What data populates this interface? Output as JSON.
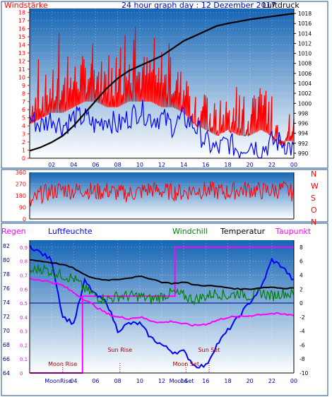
{
  "header": {
    "title": "24 hour graph day : 12 Dezember 2017",
    "left_label": "Windstärke",
    "right_label": "Luftdruck"
  },
  "colors": {
    "wind": "#ff0000",
    "gust_base": "#0000ff",
    "pressure": "#000000",
    "humidity": "#0000ff",
    "windchill": "#008000",
    "temperature": "#000000",
    "dewpoint": "#ff00ff",
    "rain": "#ff00ff",
    "gradient_top": "#1e78c8",
    "gradient_bottom": "#ffffff"
  },
  "chart_data": [
    {
      "type": "bar",
      "name_id": "wind-pressure",
      "title": "24 hour graph day : 12 Dezember 2017",
      "ylabel": "Windstärke",
      "y2label": "Luftdruck",
      "x_ticks": [
        "02",
        "04",
        "06",
        "08",
        "10",
        "12",
        "14",
        "16",
        "18",
        "20",
        "22",
        "00"
      ],
      "y_ticks": [
        0,
        1,
        2,
        3,
        4,
        5,
        6,
        7,
        8,
        9,
        10,
        11,
        12,
        13,
        14,
        15,
        16,
        17,
        18
      ],
      "y2_ticks": [
        990,
        992,
        994,
        996,
        998,
        1000,
        1002,
        1004,
        1006,
        1008,
        1010,
        1012,
        1014,
        1016,
        1018
      ],
      "ylim": [
        0,
        18.5
      ],
      "y2lim": [
        989,
        1019
      ],
      "pressure": {
        "x": [
          0,
          1,
          2,
          3,
          4,
          5,
          6,
          7,
          8,
          9,
          10,
          11,
          12,
          13,
          14,
          15,
          16,
          17,
          18,
          19,
          20,
          21,
          22,
          23,
          24
        ],
        "values": [
          990.5,
          991.2,
          992.2,
          993.5,
          995.5,
          998,
          1000.5,
          1003,
          1005,
          1006.5,
          1007.5,
          1008.5,
          1009.5,
          1011,
          1012.5,
          1013.5,
          1014.5,
          1015.5,
          1016,
          1016.4,
          1016.8,
          1017.1,
          1017.4,
          1017.7,
          1018
        ]
      },
      "wind": {
        "x": [
          0,
          1,
          2,
          3,
          4,
          5,
          6,
          7,
          8,
          9,
          10,
          11,
          12,
          13,
          14,
          15,
          16,
          17,
          18,
          19,
          20,
          21,
          22,
          23,
          24
        ],
        "values": [
          6,
          7,
          8,
          8,
          9,
          10,
          10,
          9,
          9,
          10,
          10,
          10,
          9,
          9,
          8,
          6,
          5,
          4,
          5,
          4,
          4,
          5,
          4,
          3,
          3
        ],
        "gust_max": [
          12,
          14,
          15,
          16,
          15,
          17,
          16,
          16,
          14,
          17,
          18,
          15,
          15,
          14,
          12,
          11,
          9,
          8,
          9,
          9,
          8,
          9,
          9,
          7,
          6
        ]
      },
      "gust_base": {
        "x": [
          0,
          1,
          2,
          3,
          4,
          5,
          6,
          7,
          8,
          9,
          10,
          11,
          12,
          13,
          14,
          15,
          16,
          17,
          18,
          19,
          20,
          21,
          22,
          23,
          24
        ],
        "values": [
          5,
          4,
          5,
          4,
          5,
          5,
          4,
          5,
          4,
          5,
          6,
          5,
          5,
          4,
          5,
          4,
          2,
          1,
          2,
          1,
          2,
          1,
          2,
          2,
          1
        ]
      }
    },
    {
      "type": "line",
      "name_id": "wind-direction",
      "ylabel_letters": [
        "N",
        "W",
        "S",
        "O",
        "N"
      ],
      "y_ticks": [
        0,
        90,
        180,
        270,
        360
      ],
      "ylim": [
        0,
        360
      ],
      "series": [
        {
          "name": "",
          "x": [
            0,
            1,
            2,
            3,
            4,
            5,
            6,
            7,
            8,
            9,
            10,
            11,
            12,
            13,
            14,
            15,
            16,
            17,
            18,
            19,
            20,
            21,
            22,
            23,
            24
          ],
          "values": [
            110,
            190,
            210,
            230,
            215,
            230,
            205,
            220,
            200,
            195,
            210,
            230,
            215,
            210,
            205,
            225,
            220,
            215,
            205,
            225,
            230,
            215,
            220,
            230,
            200
          ]
        }
      ]
    },
    {
      "type": "line",
      "name_id": "temperature-humidity",
      "legend": [
        "Regen",
        "Luftfeuchte",
        "Windchill",
        "Temperatur",
        "Taupunkt"
      ],
      "x_ticks": [
        "04",
        "06",
        "08",
        "10",
        "12",
        "14",
        "16",
        "18",
        "20",
        "22",
        "00"
      ],
      "left_ticks_humidity": [
        64,
        66,
        68,
        70,
        72,
        74,
        76,
        78,
        80,
        82
      ],
      "left_ticks_rain": [
        "0",
        "0.1",
        "0.2",
        "0.3",
        "0.4",
        "0.5",
        "0.6",
        "0.7",
        "0.8",
        "0.9"
      ],
      "right_ticks": [
        -10,
        -8,
        -6,
        -4,
        -2,
        0,
        2,
        4,
        6,
        8
      ],
      "humidity_lim": [
        64,
        82.8
      ],
      "temp_lim": [
        -10,
        9
      ],
      "humidity": {
        "x": [
          0,
          1,
          2,
          3,
          4,
          5,
          6,
          7,
          8,
          9,
          10,
          11,
          12,
          13,
          14,
          15,
          16,
          17,
          18,
          19,
          20,
          21,
          22,
          23,
          24
        ],
        "values": [
          82,
          81,
          80,
          72,
          71,
          77,
          75,
          74,
          70,
          71,
          71,
          69,
          68,
          67,
          67,
          65,
          65,
          68,
          70,
          72,
          74,
          76,
          80,
          79,
          77
        ]
      },
      "temperature": {
        "x": [
          0,
          1,
          2,
          3,
          4,
          5,
          6,
          7,
          8,
          9,
          10,
          11,
          12,
          13,
          14,
          15,
          16,
          17,
          18,
          19,
          20,
          21,
          22,
          23,
          24
        ],
        "values": [
          6.2,
          6.0,
          5.8,
          5.5,
          5.0,
          4.0,
          3.5,
          3.3,
          3.4,
          3.6,
          3.8,
          3.5,
          3.0,
          2.8,
          3.0,
          2.6,
          2.5,
          2.4,
          2.2,
          2.0,
          2.0,
          2.2,
          2.3,
          2.1,
          2.2
        ]
      },
      "windchill": {
        "x": [
          0,
          1,
          2,
          3,
          4,
          5,
          6,
          7,
          8,
          9,
          10,
          11,
          12,
          13,
          14,
          15,
          16,
          17,
          18,
          19,
          20,
          21,
          22,
          23,
          24
        ],
        "values": [
          4.5,
          5.0,
          4.5,
          4.0,
          3.5,
          2.0,
          1.0,
          0.5,
          1.0,
          1.0,
          1.0,
          0.5,
          1.0,
          1.5,
          1.0,
          0.5,
          1.0,
          1.5,
          1.0,
          1.5,
          1.0,
          1.5,
          1.0,
          1.5,
          1.2
        ]
      },
      "dewpoint": {
        "x": [
          0,
          1,
          2,
          3,
          4,
          5,
          6,
          7,
          8,
          9,
          10,
          11,
          12,
          13,
          14,
          15,
          16,
          17,
          18,
          19,
          20,
          21,
          22,
          23,
          24
        ],
        "values": [
          3.5,
          3.3,
          3.0,
          2.5,
          1.5,
          0.5,
          -0.5,
          -1.5,
          -2.0,
          -2.2,
          -2.0,
          -2.5,
          -2.8,
          -2.6,
          -3.0,
          -3.2,
          -3.0,
          -2.5,
          -2.0,
          -2.0,
          -1.8,
          -1.6,
          -1.5,
          -1.6,
          -1.7
        ]
      },
      "rain": {
        "x": [
          0,
          4.8,
          4.8,
          13.2,
          13.2,
          24
        ],
        "values": [
          0,
          0,
          0.55,
          0.55,
          0.9,
          0.9
        ]
      },
      "markers": [
        {
          "label": "Moon Rise",
          "hour": 3.0
        },
        {
          "label": "Sun Rise",
          "hour": 8.2
        },
        {
          "label": "Moon Set",
          "hour": 14.2
        },
        {
          "label": "Sun Set",
          "hour": 16.3
        }
      ],
      "bottom_overlap_labels": [
        "MoonRise",
        "MoonSet"
      ]
    }
  ]
}
